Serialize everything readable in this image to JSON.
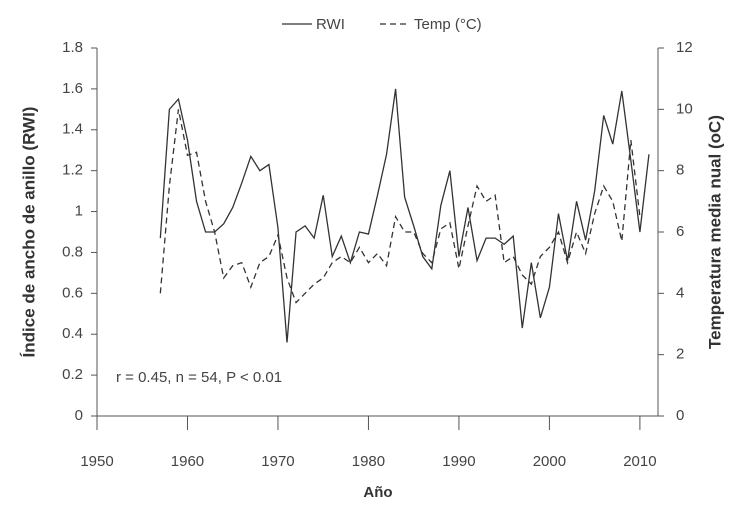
{
  "chart_data": {
    "type": "line",
    "x_label": "Año",
    "y_label": "Índice de ancho de anillo (RWI)",
    "y2_label": "Temperatura media nual (oC)",
    "annotation": "r = 0.45, n = 54, P < 0.01",
    "legend": "top",
    "x": [
      1957,
      1958,
      1959,
      1960,
      1961,
      1962,
      1963,
      1964,
      1965,
      1966,
      1967,
      1968,
      1969,
      1970,
      1971,
      1972,
      1973,
      1974,
      1975,
      1976,
      1977,
      1978,
      1979,
      1980,
      1981,
      1982,
      1983,
      1984,
      1985,
      1986,
      1987,
      1988,
      1989,
      1990,
      1991,
      1992,
      1993,
      1994,
      1995,
      1996,
      1997,
      1998,
      1999,
      2000,
      2001,
      2002,
      2003,
      2004,
      2005,
      2006,
      2007,
      2008,
      2009,
      2010,
      2011
    ],
    "series": [
      {
        "name": "RWI",
        "color": "#333333",
        "dash": false,
        "axis": "y",
        "values": [
          0.87,
          1.5,
          1.55,
          1.35,
          1.05,
          0.9,
          0.9,
          0.94,
          1.02,
          1.14,
          1.27,
          1.2,
          1.23,
          0.92,
          0.36,
          0.9,
          0.93,
          0.87,
          1.08,
          0.78,
          0.88,
          0.75,
          0.9,
          0.89,
          1.08,
          1.28,
          1.6,
          1.07,
          0.93,
          0.78,
          0.72,
          1.03,
          1.2,
          0.78,
          1.02,
          0.76,
          0.87,
          0.87,
          0.84,
          0.88,
          0.43,
          0.75,
          0.48,
          0.63,
          0.99,
          0.76,
          1.05,
          0.86,
          1.1,
          1.47,
          1.33,
          1.59,
          1.25,
          0.9,
          1.28
        ]
      },
      {
        "name": "Temp (°C)",
        "color": "#333333",
        "dash": true,
        "axis": "y2",
        "values": [
          4.0,
          7.5,
          10.0,
          8.5,
          8.6,
          7.0,
          6.0,
          4.5,
          4.9,
          5.0,
          4.2,
          5.0,
          5.2,
          5.9,
          4.5,
          3.7,
          4.0,
          4.3,
          4.5,
          5.0,
          5.2,
          5.0,
          5.5,
          5.0,
          5.3,
          4.9,
          6.5,
          6.0,
          6.0,
          5.3,
          5.0,
          6.1,
          6.3,
          4.8,
          6.2,
          7.5,
          7.0,
          7.2,
          5.0,
          5.2,
          4.6,
          4.3,
          5.2,
          5.5,
          6.0,
          5.0,
          6.0,
          5.3,
          6.6,
          7.5,
          7.0,
          5.7,
          9.0,
          6.5,
          null
        ]
      }
    ],
    "xlim": [
      1950,
      2012
    ],
    "xticks": [
      1950,
      1960,
      1970,
      1980,
      1990,
      2000,
      2010
    ],
    "ylim": [
      0,
      1.8
    ],
    "yticks": [
      0,
      0.2,
      0.4,
      0.6,
      0.8,
      1,
      1.2,
      1.4,
      1.6,
      1.8
    ],
    "y2lim": [
      0,
      12
    ],
    "y2ticks": [
      0,
      2,
      4,
      6,
      8,
      10,
      12
    ]
  }
}
